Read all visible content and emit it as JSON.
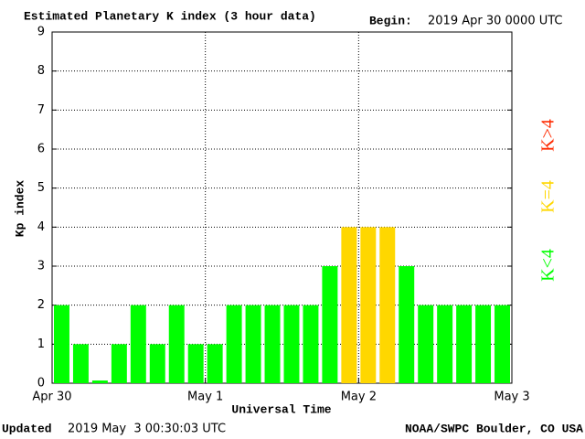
{
  "chart_data": {
    "type": "bar",
    "title": "Estimated Planetary K index (3 hour data)",
    "begin_label": "Begin:",
    "begin": "2019 Apr 30 0000 UTC",
    "ylabel": "Kp index",
    "xlabel": "Universal Time",
    "updated_label": "Updated",
    "updated": "2019 May  3 00:30:03 UTC",
    "credit": "NOAA/SWPC Boulder, CO USA",
    "x": [
      0,
      3,
      6,
      9,
      12,
      15,
      18,
      21,
      24,
      27,
      30,
      33,
      36,
      39,
      42,
      45,
      48,
      51,
      54,
      57,
      60,
      63,
      66,
      69
    ],
    "bar_width": 3,
    "values": [
      2,
      1,
      0.07,
      1,
      2,
      1,
      2,
      1,
      1,
      2,
      2,
      2,
      2,
      2,
      3,
      4,
      4,
      4,
      3,
      2,
      2,
      2,
      2,
      2
    ],
    "threshold": 4,
    "legend": [
      {
        "label": "K<4",
        "color": "#00ff00"
      },
      {
        "label": "K=4",
        "color": "#ffd700"
      },
      {
        "label": "K>4",
        "color": "#ff2a00"
      }
    ],
    "xlim": [
      0,
      72
    ],
    "xticks": [
      {
        "value": 0,
        "label": "Apr 30"
      },
      {
        "value": 24,
        "label": "May 1"
      },
      {
        "value": 48,
        "label": "May 2"
      },
      {
        "value": 72,
        "label": "May 3"
      }
    ],
    "ylim": [
      0,
      9
    ],
    "yticks": [
      0,
      1,
      2,
      3,
      4,
      5,
      6,
      7,
      8,
      9
    ],
    "grid": true
  }
}
